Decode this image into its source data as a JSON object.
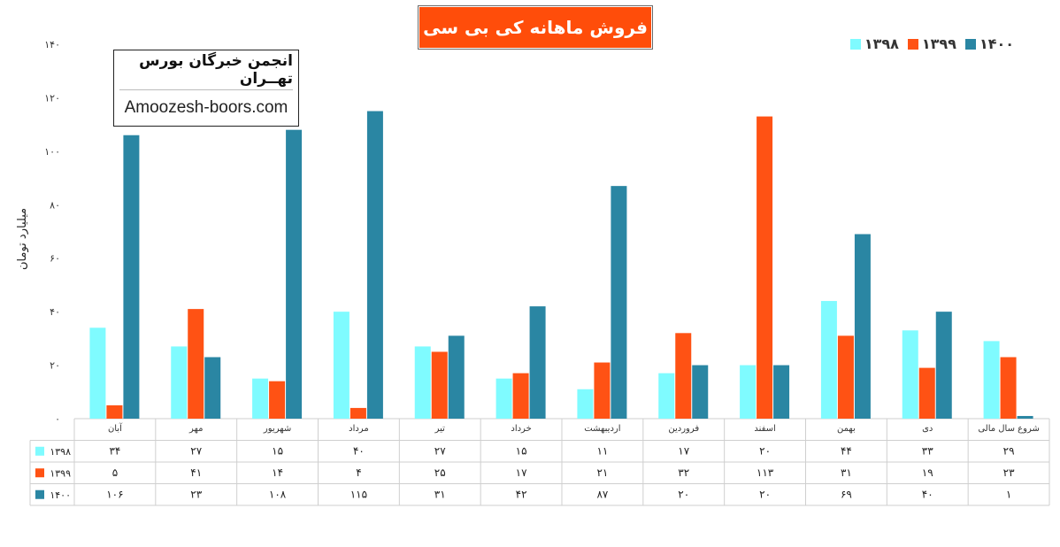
{
  "title": "فروش ماهانه کی بی سی",
  "brand": {
    "name": "انجمن خبرگان بورس تهــران",
    "site": "Amoozesh-boors.com"
  },
  "chart_data": {
    "type": "bar",
    "ylabel": "میلیارد تومان",
    "ylim": [
      0,
      140
    ],
    "yticks": [
      "۰",
      "۲۰",
      "۴۰",
      "۶۰",
      "۸۰",
      "۱۰۰",
      "۱۲۰",
      "۱۴۰"
    ],
    "grid": false,
    "legend_position": "top-right",
    "categories": [
      "آبان",
      "مهر",
      "شهریور",
      "مرداد",
      "تیر",
      "خرداد",
      "اردیبهشت",
      "فروردین",
      "اسفند",
      "بهمن",
      "دی",
      "شروع سال مالی"
    ],
    "series": [
      {
        "name": "۱۳۹۸",
        "color": "#7ffbff",
        "values": [
          34,
          27,
          15,
          40,
          27,
          15,
          11,
          17,
          20,
          44,
          33,
          29
        ],
        "labels": [
          "۳۴",
          "۲۷",
          "۱۵",
          "۴۰",
          "۲۷",
          "۱۵",
          "۱۱",
          "۱۷",
          "۲۰",
          "۴۴",
          "۳۳",
          "۲۹"
        ]
      },
      {
        "name": "۱۳۹۹",
        "color": "#ff5214",
        "values": [
          5,
          41,
          14,
          4,
          25,
          17,
          21,
          32,
          113,
          31,
          19,
          23
        ],
        "labels": [
          "۵",
          "۴۱",
          "۱۴",
          "۴",
          "۲۵",
          "۱۷",
          "۲۱",
          "۳۲",
          "۱۱۳",
          "۳۱",
          "۱۹",
          "۲۳"
        ]
      },
      {
        "name": "۱۴۰۰",
        "color": "#2a86a3",
        "values": [
          106,
          23,
          108,
          115,
          31,
          42,
          87,
          20,
          20,
          69,
          40,
          1
        ],
        "labels": [
          "۱۰۶",
          "۲۳",
          "۱۰۸",
          "۱۱۵",
          "۳۱",
          "۴۲",
          "۸۷",
          "۲۰",
          "۲۰",
          "۶۹",
          "۴۰",
          "۱"
        ]
      }
    ]
  }
}
